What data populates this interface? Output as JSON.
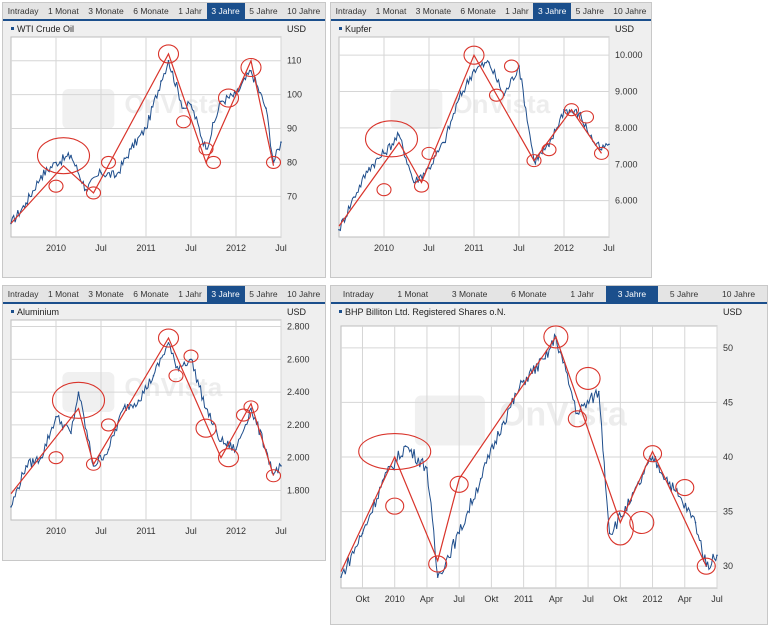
{
  "tab_labels": [
    "Intraday",
    "1 Monat",
    "3 Monate",
    "6 Monate",
    "1 Jahr",
    "3 Jahre",
    "5 Jahre",
    "10 Jahre"
  ],
  "active_tab": "3 Jahre",
  "watermark": "OnVista",
  "colors": {
    "line": "#1f4e8c",
    "trend": "#d9342b",
    "circle": "#d9342b",
    "tab_active": "#1b4f8c",
    "grid": "#d6d6d6"
  },
  "chart_data": [
    {
      "type": "line",
      "title": "WTI Crude Oil",
      "currency": "USD",
      "x": [
        "2009-07",
        "2009-09",
        "2009-11",
        "2010-01",
        "2010-03",
        "2010-05",
        "2010-07",
        "2010-09",
        "2010-11",
        "2011-01",
        "2011-03",
        "2011-04",
        "2011-06",
        "2011-07",
        "2011-09",
        "2011-11",
        "2012-01",
        "2012-03",
        "2012-05",
        "2012-06",
        "2012-07"
      ],
      "values": [
        62,
        68,
        76,
        80,
        82,
        72,
        77,
        76,
        84,
        90,
        104,
        110,
        96,
        97,
        84,
        98,
        100,
        107,
        96,
        80,
        86
      ],
      "xticks": [
        "2010",
        "Jul",
        "2011",
        "Jul",
        "2012",
        "Jul"
      ],
      "xtick_dates": [
        "2010-01",
        "2010-07",
        "2011-01",
        "2011-07",
        "2012-01",
        "2012-07"
      ],
      "yticks": [
        "110",
        "100",
        "90",
        "80",
        "70"
      ],
      "ytick_values": [
        110,
        100,
        90,
        80,
        70
      ],
      "ylim": [
        58,
        117
      ],
      "trend": [
        [
          "2009-07",
          62
        ],
        [
          "2010-02",
          79
        ],
        [
          "2010-06",
          71
        ],
        [
          "2011-04",
          112
        ],
        [
          "2011-09",
          80
        ],
        [
          "2012-03",
          110
        ],
        [
          "2012-06",
          79
        ]
      ],
      "circles": [
        [
          "2010-02",
          82,
          "big"
        ],
        [
          "2010-01",
          73,
          "small"
        ],
        [
          "2010-06",
          71,
          "small"
        ],
        [
          "2010-08",
          80,
          "small"
        ],
        [
          "2011-04",
          112,
          "med"
        ],
        [
          "2011-06",
          92,
          "small"
        ],
        [
          "2011-09",
          84,
          "small"
        ],
        [
          "2011-10",
          80,
          "small"
        ],
        [
          "2011-12",
          99,
          "med"
        ],
        [
          "2012-03",
          108,
          "med"
        ],
        [
          "2012-06",
          80,
          "small"
        ]
      ]
    },
    {
      "type": "line",
      "title": "Kupfer",
      "currency": "USD",
      "x": [
        "2009-07",
        "2009-09",
        "2009-11",
        "2010-01",
        "2010-03",
        "2010-05",
        "2010-07",
        "2010-09",
        "2010-11",
        "2011-01",
        "2011-03",
        "2011-05",
        "2011-07",
        "2011-09",
        "2011-11",
        "2012-01",
        "2012-03",
        "2012-05",
        "2012-06",
        "2012-07"
      ],
      "values": [
        5200,
        6100,
        6900,
        7300,
        7800,
        6500,
        6900,
        7600,
        8800,
        9600,
        9800,
        8900,
        9700,
        7100,
        7500,
        8500,
        8400,
        7600,
        7400,
        7550
      ],
      "xticks": [
        "2010",
        "Jul",
        "2011",
        "Jul",
        "2012",
        "Jul"
      ],
      "xtick_dates": [
        "2010-01",
        "2010-07",
        "2011-01",
        "2011-07",
        "2012-01",
        "2012-07"
      ],
      "yticks": [
        "10.000",
        "9.000",
        "8.000",
        "7.000",
        "6.000"
      ],
      "ytick_values": [
        10000,
        9000,
        8000,
        7000,
        6000
      ],
      "ylim": [
        5000,
        10500
      ],
      "trend": [
        [
          "2009-07",
          5300
        ],
        [
          "2010-03",
          7600
        ],
        [
          "2010-06",
          6500
        ],
        [
          "2011-01",
          10000
        ],
        [
          "2011-09",
          7100
        ],
        [
          "2012-02",
          8500
        ],
        [
          "2012-06",
          7300
        ]
      ],
      "circles": [
        [
          "2010-02",
          7700,
          "big"
        ],
        [
          "2010-01",
          6300,
          "small"
        ],
        [
          "2010-06",
          6400,
          "small"
        ],
        [
          "2010-07",
          7300,
          "small"
        ],
        [
          "2011-01",
          10000,
          "med"
        ],
        [
          "2011-04",
          8900,
          "small"
        ],
        [
          "2011-06",
          9700,
          "small"
        ],
        [
          "2011-09",
          7100,
          "small"
        ],
        [
          "2011-11",
          7400,
          "small"
        ],
        [
          "2012-02",
          8500,
          "small"
        ],
        [
          "2012-04",
          8300,
          "small"
        ],
        [
          "2012-06",
          7300,
          "small"
        ]
      ]
    },
    {
      "type": "line",
      "title": "Aluminium",
      "currency": "USD",
      "x": [
        "2009-07",
        "2009-09",
        "2009-11",
        "2010-01",
        "2010-03",
        "2010-04",
        "2010-06",
        "2010-08",
        "2010-10",
        "2010-12",
        "2011-02",
        "2011-04",
        "2011-05",
        "2011-07",
        "2011-09",
        "2011-11",
        "2012-01",
        "2012-03",
        "2012-05",
        "2012-06",
        "2012-07"
      ],
      "values": [
        1700,
        1950,
        2000,
        2250,
        2150,
        2400,
        1950,
        2050,
        2300,
        2350,
        2500,
        2700,
        2550,
        2600,
        2300,
        2100,
        2050,
        2300,
        2050,
        1900,
        1950
      ],
      "xticks": [
        "2010",
        "Jul",
        "2011",
        "Jul",
        "2012",
        "Jul"
      ],
      "xtick_dates": [
        "2010-01",
        "2010-07",
        "2011-01",
        "2011-07",
        "2012-01",
        "2012-07"
      ],
      "yticks": [
        "2.800",
        "2.600",
        "2.400",
        "2.200",
        "2.000",
        "1.800"
      ],
      "ytick_values": [
        2800,
        2600,
        2400,
        2200,
        2000,
        1800
      ],
      "ylim": [
        1620,
        2840
      ],
      "trend": [
        [
          "2009-07",
          1780
        ],
        [
          "2010-04",
          2300
        ],
        [
          "2010-06",
          1960
        ],
        [
          "2011-04",
          2730
        ],
        [
          "2011-11",
          2000
        ],
        [
          "2012-03",
          2330
        ],
        [
          "2012-06",
          1890
        ]
      ],
      "circles": [
        [
          "2010-04",
          2350,
          "big"
        ],
        [
          "2010-01",
          2000,
          "small"
        ],
        [
          "2010-06",
          1960,
          "small"
        ],
        [
          "2010-08",
          2200,
          "small"
        ],
        [
          "2011-04",
          2730,
          "med"
        ],
        [
          "2011-05",
          2500,
          "small"
        ],
        [
          "2011-07",
          2620,
          "small"
        ],
        [
          "2011-09",
          2180,
          "med"
        ],
        [
          "2011-12",
          2000,
          "med"
        ],
        [
          "2012-02",
          2260,
          "small"
        ],
        [
          "2012-03",
          2310,
          "small"
        ],
        [
          "2012-06",
          1890,
          "small"
        ]
      ]
    },
    {
      "type": "line",
      "title": "BHP Billiton Ltd. Registered Shares o.N.",
      "currency": "USD",
      "x": [
        "2009-08",
        "2009-10",
        "2009-12",
        "2010-02",
        "2010-04",
        "2010-05",
        "2010-07",
        "2010-09",
        "2010-11",
        "2011-01",
        "2011-03",
        "2011-04",
        "2011-06",
        "2011-08",
        "2011-09",
        "2011-11",
        "2012-01",
        "2012-03",
        "2012-05",
        "2012-06",
        "2012-07"
      ],
      "values": [
        29,
        33,
        38,
        41,
        39,
        29,
        33,
        38,
        43,
        47,
        49,
        51,
        44,
        46,
        33,
        36,
        40,
        37,
        34,
        30,
        31
      ],
      "xticks": [
        "Okt",
        "2010",
        "Apr",
        "Jul",
        "Okt",
        "2011",
        "Apr",
        "Jul",
        "Okt",
        "2012",
        "Apr",
        "Jul"
      ],
      "xtick_dates": [
        "2009-10",
        "2010-01",
        "2010-04",
        "2010-07",
        "2010-10",
        "2011-01",
        "2011-04",
        "2011-07",
        "2011-10",
        "2012-01",
        "2012-04",
        "2012-07"
      ],
      "yticks": [
        "50",
        "45",
        "40",
        "35",
        "30"
      ],
      "ytick_values": [
        50,
        45,
        40,
        35,
        30
      ],
      "ylim": [
        28,
        52
      ],
      "trend": [
        [
          "2009-08",
          29.5
        ],
        [
          "2010-01",
          40
        ],
        [
          "2010-05",
          30.5
        ],
        [
          "2010-07",
          38
        ],
        [
          "2011-04",
          51
        ],
        [
          "2011-10",
          34
        ],
        [
          "2012-01",
          40.5
        ],
        [
          "2012-06",
          30
        ]
      ],
      "circles": [
        [
          "2010-01",
          40.5,
          "big"
        ],
        [
          "2010-01",
          35.5,
          "small"
        ],
        [
          "2010-05",
          30.2,
          "small"
        ],
        [
          "2010-07",
          37.5,
          "small"
        ],
        [
          "2011-04",
          51,
          "med"
        ],
        [
          "2011-06",
          43.5,
          "small"
        ],
        [
          "2011-07",
          47.2,
          "med"
        ],
        [
          "2011-10",
          33.5,
          "bigv"
        ],
        [
          "2011-12",
          34,
          "med"
        ],
        [
          "2012-01",
          40.3,
          "small"
        ],
        [
          "2012-04",
          37.2,
          "small"
        ],
        [
          "2012-06",
          30,
          "small"
        ]
      ]
    }
  ]
}
